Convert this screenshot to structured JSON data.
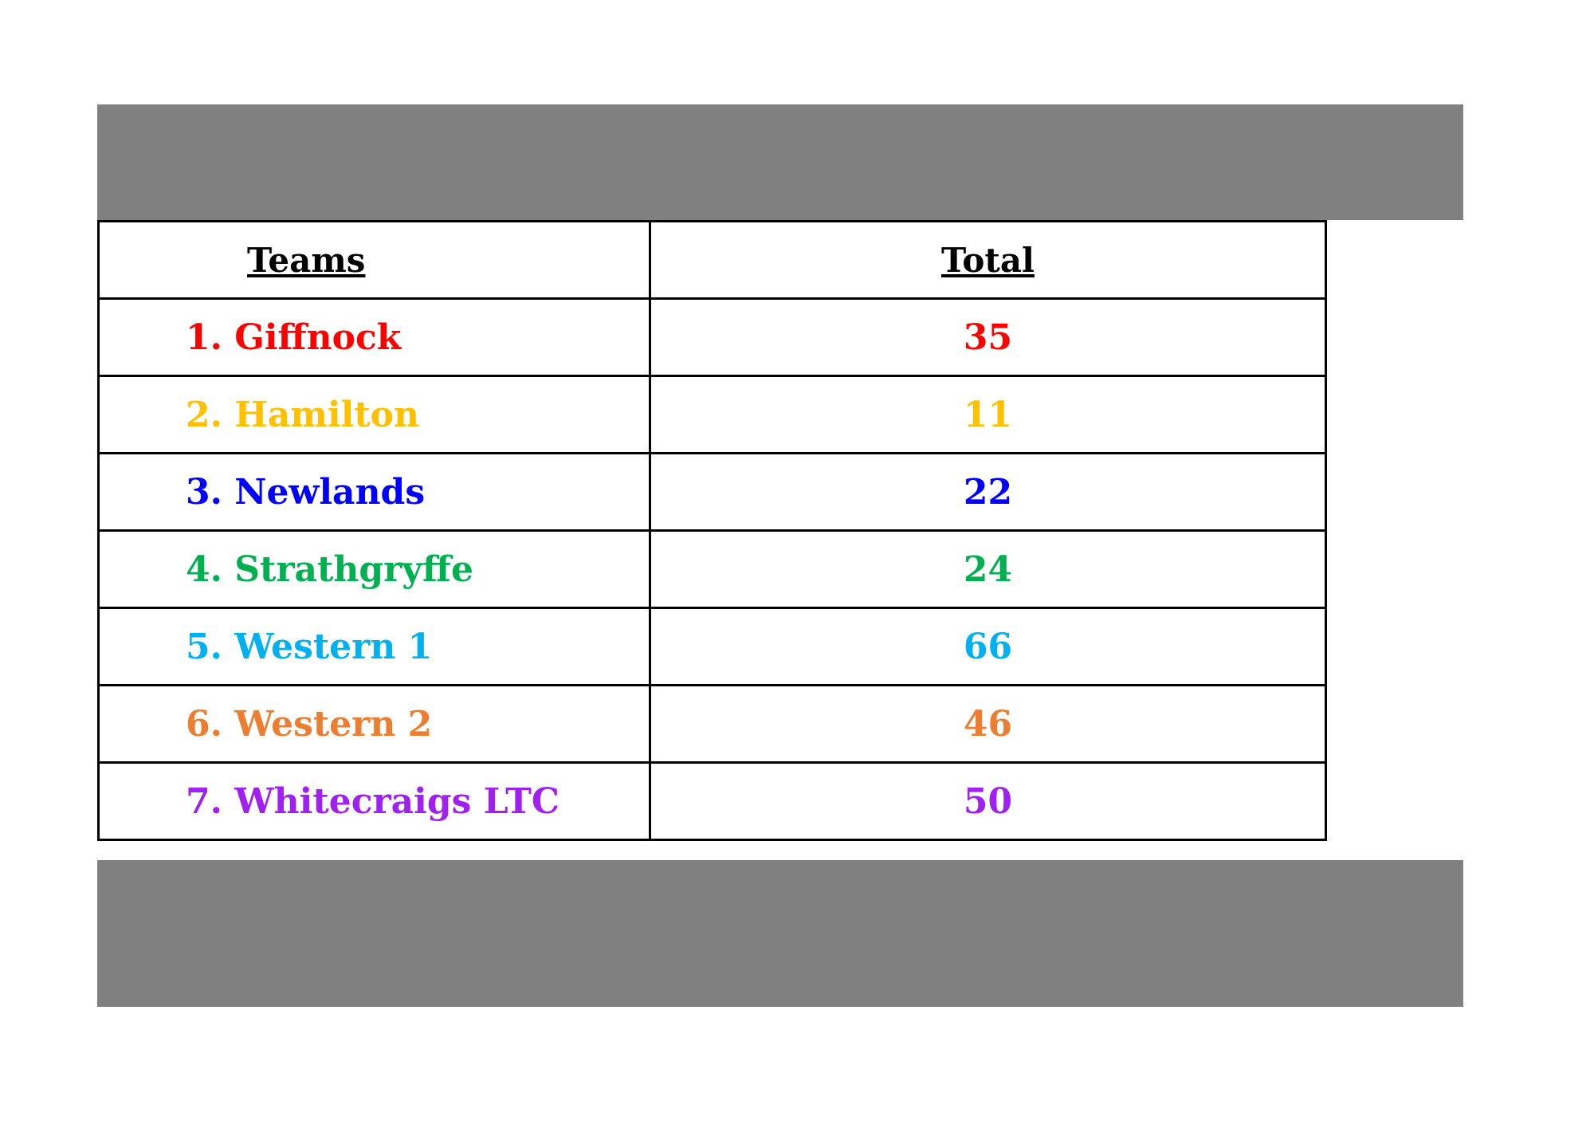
{
  "header": {
    "teams": "Teams",
    "total": "Total"
  },
  "table": {
    "rows": [
      {
        "team": "1. Giffnock",
        "total": 35,
        "color": "#ff0000"
      },
      {
        "team": "2. Hamilton",
        "total": 11,
        "color": "#ffc000"
      },
      {
        "team": "3. Newlands",
        "total": 22,
        "color": "#0000ff"
      },
      {
        "team": "4. Strathgryffe",
        "total": 24,
        "color": "#00b050"
      },
      {
        "team": "5. Western 1",
        "total": 66,
        "color": "#00b0f0"
      },
      {
        "team": "6. Western 2",
        "total": 46,
        "color": "#ed7d31"
      },
      {
        "team": "7. Whitecraigs LTC",
        "total": 50,
        "color": "#a020f0"
      }
    ]
  }
}
